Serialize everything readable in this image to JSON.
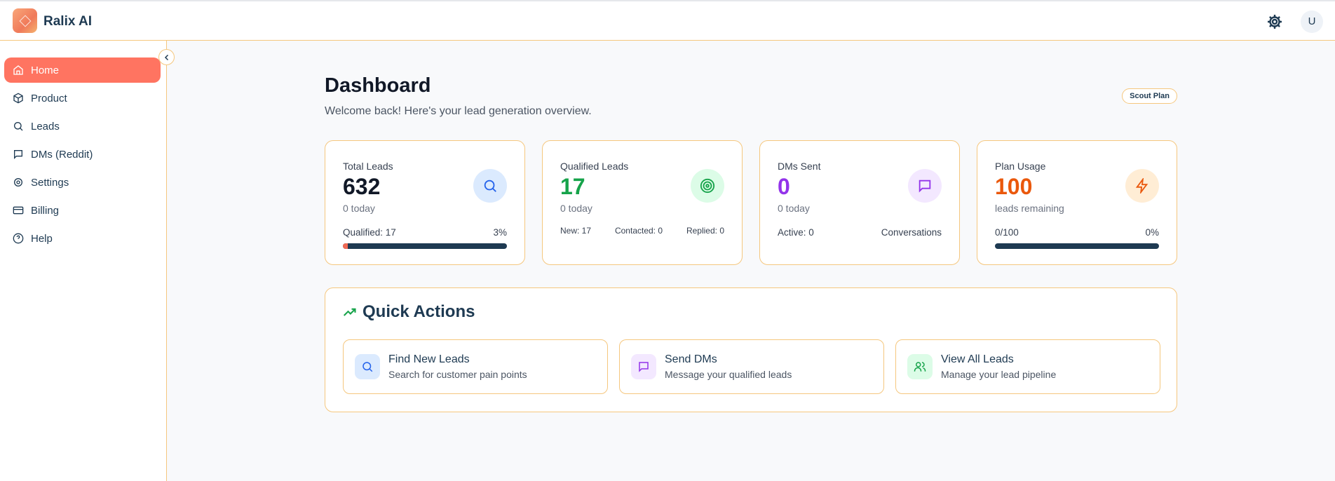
{
  "app": {
    "name": "Ralix AI",
    "avatar_initial": "U"
  },
  "sidebar": {
    "items": [
      {
        "label": "Home",
        "icon": "home-icon",
        "active": true
      },
      {
        "label": "Product",
        "icon": "box-icon"
      },
      {
        "label": "Leads",
        "icon": "search-icon"
      },
      {
        "label": "DMs (Reddit)",
        "icon": "message-icon"
      },
      {
        "label": "Settings",
        "icon": "gear-icon"
      },
      {
        "label": "Billing",
        "icon": "credit-card-icon"
      },
      {
        "label": "Help",
        "icon": "help-circle-icon"
      }
    ]
  },
  "page": {
    "title": "Dashboard",
    "subtitle": "Welcome back! Here's your lead generation overview.",
    "plan_badge": "Scout Plan"
  },
  "cards": [
    {
      "label": "Total Leads",
      "value": "632",
      "sub": "0 today",
      "left": "Qualified: 17",
      "right": "3%",
      "progress": 3,
      "color": "#111827",
      "icon": "search-icon"
    },
    {
      "label": "Qualified Leads",
      "value": "17",
      "sub": "0 today",
      "stats": [
        "New: 17",
        "Contacted: 0",
        "Replied: 0"
      ],
      "color": "#16a34a",
      "icon": "target-icon"
    },
    {
      "label": "DMs Sent",
      "value": "0",
      "sub": "0 today",
      "left": "Active: 0",
      "right": "Conversations",
      "color": "#9333ea",
      "icon": "message-icon"
    },
    {
      "label": "Plan Usage",
      "value": "100",
      "sub": "leads remaining",
      "left": "0/100",
      "right": "0%",
      "progress": 0,
      "color": "#ea580c",
      "icon": "zap-icon"
    }
  ],
  "quick_actions": {
    "title": "Quick Actions",
    "items": [
      {
        "title": "Find New Leads",
        "desc": "Search for customer pain points",
        "icon": "search-icon"
      },
      {
        "title": "Send DMs",
        "desc": "Message your qualified leads",
        "icon": "message-icon"
      },
      {
        "title": "View All Leads",
        "desc": "Manage your lead pipeline",
        "icon": "users-icon"
      }
    ]
  }
}
